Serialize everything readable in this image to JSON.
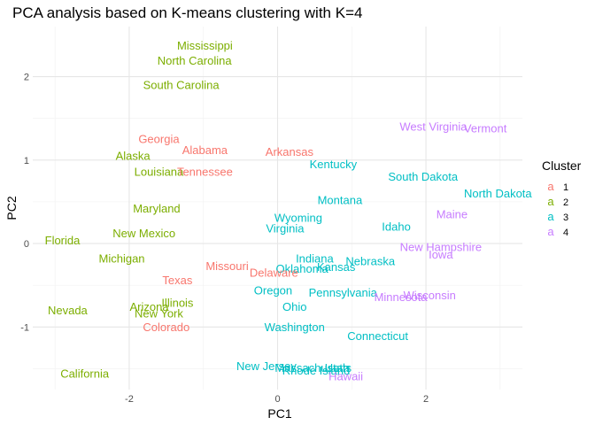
{
  "chart_data": {
    "type": "scatter",
    "title": "PCA analysis based on K-means clustering with K=4",
    "xlabel": "PC1",
    "ylabel": "PC2",
    "xlim": [
      -3.3,
      3.3
    ],
    "ylim": [
      -1.75,
      2.6
    ],
    "x_ticks": [
      -2,
      0,
      2
    ],
    "y_ticks": [
      -1,
      0,
      1,
      2
    ],
    "grid": true,
    "legend": {
      "title": "Cluster",
      "placement": "right",
      "glyph": "a",
      "entries": [
        {
          "label": "1",
          "color": "#F8766D"
        },
        {
          "label": "2",
          "color": "#7CAE00"
        },
        {
          "label": "3",
          "color": "#00BFC4"
        },
        {
          "label": "4",
          "color": "#C77CFF"
        }
      ]
    },
    "points": [
      {
        "label": "Mississippi",
        "x": -0.98,
        "y": 2.37,
        "cluster": 2
      },
      {
        "label": "North Carolina",
        "x": -1.12,
        "y": 2.19,
        "cluster": 2
      },
      {
        "label": "South Carolina",
        "x": -1.3,
        "y": 1.9,
        "cluster": 2
      },
      {
        "label": "Georgia",
        "x": -1.6,
        "y": 1.25,
        "cluster": 1
      },
      {
        "label": "Alabama",
        "x": -0.98,
        "y": 1.12,
        "cluster": 1
      },
      {
        "label": "Arkansas",
        "x": 0.16,
        "y": 1.1,
        "cluster": 1
      },
      {
        "label": "Alaska",
        "x": -1.95,
        "y": 1.05,
        "cluster": 2
      },
      {
        "label": "Kentucky",
        "x": 0.75,
        "y": 0.95,
        "cluster": 3
      },
      {
        "label": "Louisiana",
        "x": -1.6,
        "y": 0.86,
        "cluster": 2
      },
      {
        "label": "Tennessee",
        "x": -0.98,
        "y": 0.86,
        "cluster": 1
      },
      {
        "label": "West Virginia",
        "x": 2.1,
        "y": 1.4,
        "cluster": 4
      },
      {
        "label": "Vermont",
        "x": 2.8,
        "y": 1.38,
        "cluster": 4
      },
      {
        "label": "South Dakota",
        "x": 1.96,
        "y": 0.8,
        "cluster": 3
      },
      {
        "label": "North Dakota",
        "x": 2.97,
        "y": 0.6,
        "cluster": 3
      },
      {
        "label": "Montana",
        "x": 0.84,
        "y": 0.52,
        "cluster": 3
      },
      {
        "label": "Maine",
        "x": 2.35,
        "y": 0.35,
        "cluster": 4
      },
      {
        "label": "Maryland",
        "x": -1.63,
        "y": 0.42,
        "cluster": 2
      },
      {
        "label": "Wyoming",
        "x": 0.28,
        "y": 0.31,
        "cluster": 3
      },
      {
        "label": "Virginia",
        "x": 0.1,
        "y": 0.18,
        "cluster": 3
      },
      {
        "label": "Idaho",
        "x": 1.6,
        "y": 0.2,
        "cluster": 3
      },
      {
        "label": "New Mexico",
        "x": -1.8,
        "y": 0.12,
        "cluster": 2
      },
      {
        "label": "Florida",
        "x": -2.9,
        "y": 0.04,
        "cluster": 2
      },
      {
        "label": "New Hampshire",
        "x": 2.2,
        "y": -0.04,
        "cluster": 4
      },
      {
        "label": "Iowa",
        "x": 2.2,
        "y": -0.13,
        "cluster": 4
      },
      {
        "label": "Michigan",
        "x": -2.1,
        "y": -0.18,
        "cluster": 2
      },
      {
        "label": "Indiana",
        "x": 0.5,
        "y": -0.18,
        "cluster": 3
      },
      {
        "label": "Nebraska",
        "x": 1.25,
        "y": -0.21,
        "cluster": 3
      },
      {
        "label": "Kansas",
        "x": 0.79,
        "y": -0.28,
        "cluster": 3
      },
      {
        "label": "Oklahoma",
        "x": 0.33,
        "y": -0.3,
        "cluster": 3
      },
      {
        "label": "Missouri",
        "x": -0.68,
        "y": -0.27,
        "cluster": 1
      },
      {
        "label": "Delaware",
        "x": -0.05,
        "y": -0.35,
        "cluster": 1
      },
      {
        "label": "Texas",
        "x": -1.35,
        "y": -0.44,
        "cluster": 1
      },
      {
        "label": "Oregon",
        "x": -0.06,
        "y": -0.56,
        "cluster": 3
      },
      {
        "label": "Pennsylvania",
        "x": 0.88,
        "y": -0.59,
        "cluster": 3
      },
      {
        "label": "Minnesota",
        "x": 1.66,
        "y": -0.64,
        "cluster": 4
      },
      {
        "label": "Wisconsin",
        "x": 2.05,
        "y": -0.62,
        "cluster": 4
      },
      {
        "label": "Illinois",
        "x": -1.35,
        "y": -0.71,
        "cluster": 2
      },
      {
        "label": "Ohio",
        "x": 0.23,
        "y": -0.76,
        "cluster": 3
      },
      {
        "label": "Arizona",
        "x": -1.73,
        "y": -0.76,
        "cluster": 2
      },
      {
        "label": "New York",
        "x": -1.6,
        "y": -0.84,
        "cluster": 2
      },
      {
        "label": "Nevada",
        "x": -2.83,
        "y": -0.8,
        "cluster": 2
      },
      {
        "label": "Washington",
        "x": 0.23,
        "y": -1.0,
        "cluster": 3
      },
      {
        "label": "Colorado",
        "x": -1.5,
        "y": -1.0,
        "cluster": 1
      },
      {
        "label": "Connecticut",
        "x": 1.35,
        "y": -1.11,
        "cluster": 3
      },
      {
        "label": "New Jersey",
        "x": -0.15,
        "y": -1.47,
        "cluster": 3
      },
      {
        "label": "Massachusetts",
        "x": 0.48,
        "y": -1.49,
        "cluster": 3
      },
      {
        "label": "Rhode Island",
        "x": 0.52,
        "y": -1.52,
        "cluster": 3
      },
      {
        "label": "Utah",
        "x": 0.8,
        "y": -1.49,
        "cluster": 3
      },
      {
        "label": "Hawaii",
        "x": 0.92,
        "y": -1.59,
        "cluster": 4
      },
      {
        "label": "California",
        "x": -2.6,
        "y": -1.56,
        "cluster": 2
      }
    ]
  }
}
